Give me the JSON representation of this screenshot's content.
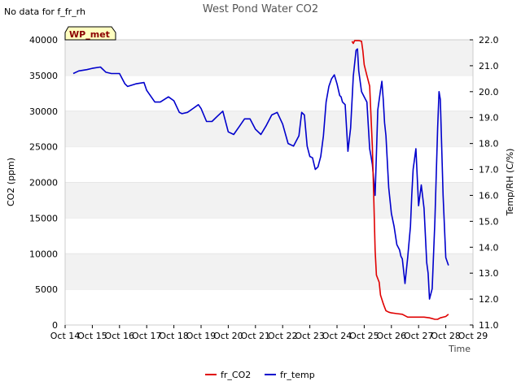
{
  "colors": {
    "co2": "#e00000",
    "temp": "#0000cc",
    "band": "#f2f2f2",
    "badge_bg": "#ffffc0",
    "badge_text": "#8b0000"
  },
  "chart_data": {
    "type": "line",
    "title": "West Pond Water CO2",
    "no_data_note": "No data for f_fr_rh",
    "badge": "WP_met",
    "xlabel": "Time",
    "ylabel": "CO2 (ppm)",
    "y2label": "Temp/RH (C/%)",
    "x_ticks": [
      "Oct 14",
      "Oct 15",
      "Oct 16",
      "Oct 17",
      "Oct 18",
      "Oct 19",
      "Oct 20",
      "Oct 21",
      "Oct 22",
      "Oct 23",
      "Oct 24",
      "Oct 25",
      "Oct 26",
      "Oct 27",
      "Oct 28",
      "Oct 29"
    ],
    "xlim_days": [
      14,
      29
    ],
    "ylim": [
      0,
      40000
    ],
    "y_ticks": [
      "0",
      "5000",
      "10000",
      "15000",
      "20000",
      "25000",
      "30000",
      "35000",
      "40000"
    ],
    "y2lim": [
      11.0,
      22.0
    ],
    "y2_ticks": [
      "11.0",
      "12.0",
      "13.0",
      "14.0",
      "15.0",
      "16.0",
      "17.0",
      "18.0",
      "19.0",
      "20.0",
      "21.0",
      "22.0"
    ],
    "grid": "horizontal bands",
    "legend_placement": "bottom-center",
    "series": [
      {
        "name": "fr_CO2",
        "axis": "left",
        "x": [
          24.55,
          24.6,
          24.65,
          24.7,
          24.8,
          24.9,
          24.95,
          25.0,
          25.1,
          25.2,
          25.3,
          25.35,
          25.4,
          25.45,
          25.5,
          25.55,
          25.6,
          25.7,
          25.75,
          25.8,
          25.9,
          26.0,
          26.2,
          26.4,
          26.5,
          26.6,
          26.8,
          27.0,
          27.2,
          27.4,
          27.6,
          27.7,
          27.8,
          28.0,
          28.1
        ],
        "y": [
          39800,
          39500,
          39900,
          39900,
          39900,
          39800,
          38500,
          36500,
          35000,
          33500,
          25000,
          18000,
          10500,
          7000,
          6500,
          6000,
          4200,
          3000,
          2500,
          2000,
          1800,
          1700,
          1600,
          1500,
          1300,
          1100,
          1100,
          1100,
          1100,
          1000,
          800,
          800,
          1000,
          1200,
          1500
        ]
      },
      {
        "name": "fr_temp",
        "axis": "right",
        "x": [
          14.3,
          14.5,
          14.8,
          15.0,
          15.3,
          15.5,
          15.7,
          16.0,
          16.2,
          16.3,
          16.6,
          16.9,
          17.0,
          17.3,
          17.5,
          17.8,
          18.0,
          18.2,
          18.3,
          18.5,
          18.7,
          18.9,
          19.0,
          19.2,
          19.4,
          19.6,
          19.8,
          20.0,
          20.2,
          20.4,
          20.6,
          20.8,
          21.0,
          21.2,
          21.4,
          21.6,
          21.8,
          22.0,
          22.2,
          22.4,
          22.6,
          22.7,
          22.8,
          22.9,
          23.0,
          23.1,
          23.2,
          23.3,
          23.4,
          23.5,
          23.6,
          23.7,
          23.8,
          23.9,
          24.0,
          24.1,
          24.15,
          24.2,
          24.3,
          24.4,
          24.5,
          24.6,
          24.7,
          24.75,
          24.8,
          24.9,
          25.0,
          25.1,
          25.2,
          25.25,
          25.3,
          25.4,
          25.5,
          25.6,
          25.65,
          25.7,
          25.75,
          25.8,
          25.9,
          26.0,
          26.1,
          26.2,
          26.3,
          26.35,
          26.4,
          26.5,
          26.6,
          26.7,
          26.75,
          26.8,
          26.85,
          26.9,
          27.0,
          27.1,
          27.2,
          27.3,
          27.35,
          27.4,
          27.5,
          27.6,
          27.7,
          27.75,
          27.8,
          27.9,
          28.0,
          28.1
        ],
        "y": [
          20.7,
          20.8,
          20.85,
          20.9,
          20.95,
          20.75,
          20.7,
          20.7,
          20.3,
          20.2,
          20.3,
          20.35,
          20.05,
          19.6,
          19.6,
          19.8,
          19.65,
          19.2,
          19.15,
          19.2,
          19.35,
          19.5,
          19.35,
          18.85,
          18.85,
          19.05,
          19.25,
          18.45,
          18.35,
          18.65,
          18.95,
          18.95,
          18.55,
          18.35,
          18.7,
          19.1,
          19.2,
          18.75,
          18.0,
          17.9,
          18.3,
          19.2,
          19.1,
          17.9,
          17.5,
          17.45,
          17.0,
          17.1,
          17.5,
          18.3,
          19.6,
          20.2,
          20.5,
          20.65,
          20.3,
          19.85,
          19.8,
          19.6,
          19.5,
          17.7,
          18.6,
          20.6,
          21.6,
          21.65,
          20.8,
          20.0,
          19.8,
          19.6,
          17.8,
          17.5,
          17.2,
          16.0,
          19.3,
          20.05,
          20.4,
          19.7,
          18.8,
          18.3,
          16.3,
          15.3,
          14.8,
          14.1,
          13.9,
          13.65,
          13.55,
          12.6,
          13.6,
          14.8,
          16.0,
          17.0,
          17.4,
          17.8,
          15.6,
          16.4,
          15.5,
          13.4,
          13.0,
          12.0,
          12.4,
          15.0,
          18.6,
          20.0,
          19.7,
          16.0,
          13.6,
          13.3
        ]
      }
    ]
  }
}
